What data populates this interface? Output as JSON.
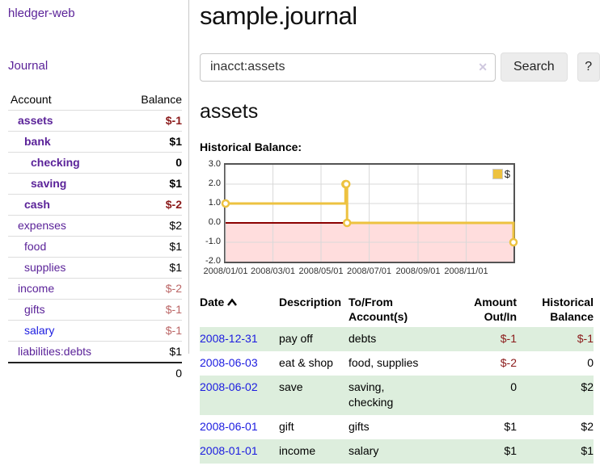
{
  "sidebar": {
    "title": "hledger-web",
    "journal_link": "Journal",
    "account_header": "Account",
    "balance_header": "Balance",
    "accounts": [
      {
        "name": "assets",
        "balance": "$-1"
      },
      {
        "name": "bank",
        "balance": "$1"
      },
      {
        "name": "checking",
        "balance": "0"
      },
      {
        "name": "saving",
        "balance": "$1"
      },
      {
        "name": "cash",
        "balance": "$-2"
      },
      {
        "name": "expenses",
        "balance": "$2"
      },
      {
        "name": "food",
        "balance": "$1"
      },
      {
        "name": "supplies",
        "balance": "$1"
      },
      {
        "name": "income",
        "balance": "$-2"
      },
      {
        "name": "gifts",
        "balance": "$-1"
      },
      {
        "name": "salary",
        "balance": "$-1"
      },
      {
        "name": "liabilities:debts",
        "balance": "$1"
      }
    ],
    "total": "0"
  },
  "header": {
    "title": "sample.journal"
  },
  "search": {
    "value": "inacct:assets",
    "clear_icon": "✕",
    "button_label": "Search",
    "help_label": "?"
  },
  "account_page": {
    "title": "assets",
    "chart_label": "Historical Balance:"
  },
  "chart_data": {
    "type": "line",
    "title": "Historical Balance",
    "steps": true,
    "series": [
      {
        "name": "$",
        "points": [
          {
            "date": "2008-01-01",
            "day": 0,
            "value": 1
          },
          {
            "date": "2008-06-01",
            "day": 152,
            "value": 2
          },
          {
            "date": "2008-06-02",
            "day": 153,
            "value": 2
          },
          {
            "date": "2008-06-03",
            "day": 154,
            "value": 0
          },
          {
            "date": "2008-12-31",
            "day": 365,
            "value": -1
          }
        ]
      }
    ],
    "x_ticks": [
      {
        "label": "2008/01/01",
        "day": 0
      },
      {
        "label": "2008/03/01",
        "day": 60
      },
      {
        "label": "2008/05/01",
        "day": 121
      },
      {
        "label": "2008/07/01",
        "day": 182
      },
      {
        "label": "2008/09/01",
        "day": 244
      },
      {
        "label": "2008/11/01",
        "day": 305
      }
    ],
    "y_ticks": [
      3,
      2,
      1,
      0,
      -1,
      -2
    ],
    "ylim": [
      -2,
      3
    ],
    "xlim_days": [
      0,
      365
    ],
    "legend": [
      {
        "label": "$",
        "color": "#edc240"
      }
    ],
    "series_color": "#edc240",
    "negative_fill": "#ffdddd",
    "zero_line_color": "#8b0000",
    "grid_color": "#d9d9d9"
  },
  "register": {
    "headers": {
      "date": "Date",
      "description": "Description",
      "accounts": "To/From Account(s)",
      "amount": "Amount Out/In",
      "historical": "Historical Balance"
    },
    "rows": [
      {
        "date": "2008-12-31",
        "description": "pay off",
        "accounts": "debts",
        "amount": "$-1",
        "balance": "$-1"
      },
      {
        "date": "2008-06-03",
        "description": "eat & shop",
        "accounts": "food, supplies",
        "amount": "$-2",
        "balance": "0"
      },
      {
        "date": "2008-06-02",
        "description": "save",
        "accounts": "saving, checking",
        "amount": "0",
        "balance": "$2"
      },
      {
        "date": "2008-06-01",
        "description": "gift",
        "accounts": "gifts",
        "amount": "$1",
        "balance": "$2"
      },
      {
        "date": "2008-01-01",
        "description": "income",
        "accounts": "salary",
        "amount": "$1",
        "balance": "$1"
      }
    ]
  }
}
